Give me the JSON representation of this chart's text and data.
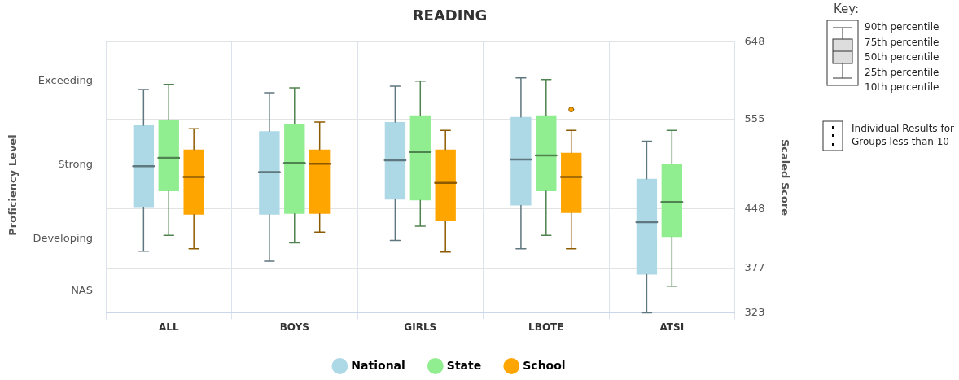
{
  "chart_data": {
    "type": "box",
    "title": "READING",
    "ylabel": "Scaled Score",
    "categories": [
      "ALL",
      "BOYS",
      "GIRLS",
      "LBOTE",
      "ATSI"
    ],
    "ylim": [
      323,
      648
    ],
    "yticks": [
      323,
      377,
      448,
      555,
      648
    ],
    "grid": true,
    "legend": "bottom",
    "series": [
      {
        "name": "National",
        "color": "#add8e6",
        "boxes": [
          {
            "low": 397,
            "q1": 449,
            "median": 499,
            "q3": 548,
            "high": 591
          },
          {
            "low": 385,
            "q1": 441,
            "median": 492,
            "q3": 541,
            "high": 587
          },
          {
            "low": 410,
            "q1": 459,
            "median": 506,
            "q3": 552,
            "high": 595
          },
          {
            "low": 400,
            "q1": 452,
            "median": 507,
            "q3": 558,
            "high": 605
          },
          {
            "low": 323,
            "q1": 369,
            "median": 432,
            "q3": 484,
            "high": 529
          }
        ]
      },
      {
        "name": "State",
        "color": "#90ee90",
        "boxes": [
          {
            "low": 416,
            "q1": 469,
            "median": 509,
            "q3": 555,
            "high": 597
          },
          {
            "low": 407,
            "q1": 442,
            "median": 503,
            "q3": 550,
            "high": 593
          },
          {
            "low": 427,
            "q1": 458,
            "median": 516,
            "q3": 560,
            "high": 601
          },
          {
            "low": 416,
            "q1": 469,
            "median": 512,
            "q3": 560,
            "high": 603
          },
          {
            "low": 355,
            "q1": 414,
            "median": 456,
            "q3": 502,
            "high": 542
          }
        ]
      },
      {
        "name": "School",
        "color": "#ffa500",
        "boxes": [
          {
            "low": 400,
            "q1": 441,
            "median": 486,
            "q3": 519,
            "high": 544
          },
          {
            "low": 420,
            "q1": 442,
            "median": 502,
            "q3": 519,
            "high": 552
          },
          {
            "low": 396,
            "q1": 433,
            "median": 479,
            "q3": 519,
            "high": 542
          },
          {
            "low": 400,
            "q1": 443,
            "median": 486,
            "q3": 515,
            "high": 542,
            "outliers": [
              567
            ]
          },
          null
        ]
      }
    ],
    "annotations": [
      "Proficiency Level",
      "Exceeding",
      "Strong",
      "Developing",
      "NAS",
      "Key:",
      "90th percentile",
      "75th percentile",
      "50th percentile",
      "25th percentile",
      "10th percentile",
      "Individual Results for Groups less than 10"
    ]
  }
}
